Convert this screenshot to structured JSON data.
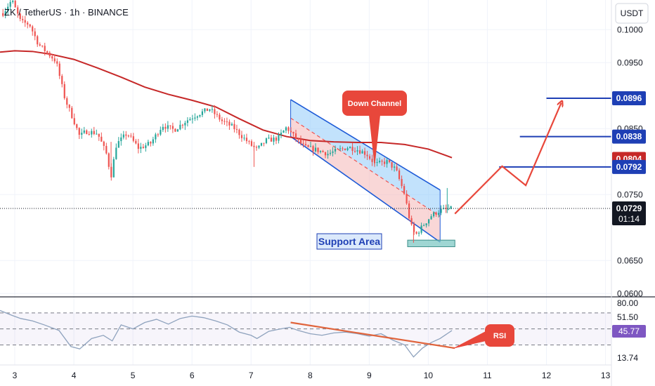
{
  "header": {
    "title": "ZK / TetherUS · 1h · BINANCE",
    "currency": "USDT"
  },
  "colors": {
    "up": "#26a69a",
    "down": "#ef5350",
    "ma": "#c62828",
    "channel_fill": "#90caf9",
    "channel_line": "#1e5bd7",
    "annotation": "#e8473b",
    "target_line": "#1e3fb5",
    "rsi_line": "#8ea2bd",
    "rsi_trend": "#e0643c"
  },
  "chart_data": [
    {
      "type": "candlestick",
      "symbol": "ZK / TetherUS",
      "timeframe": "1h",
      "exchange": "BINANCE",
      "y_unit": "USDT",
      "ylim": [
        0.0595,
        0.1045
      ],
      "xlim": [
        2.75,
        13.1
      ],
      "x_tick_labels": [
        "3",
        "4",
        "5",
        "6",
        "7",
        "8",
        "9",
        "10",
        "11",
        "12",
        "13"
      ],
      "y_tick_labels": [
        "0.1000",
        "0.0950",
        "0.0850",
        "0.0750",
        "0.0650",
        "0.0600"
      ],
      "price_path": [
        [
          2.8,
          0.1025
        ],
        [
          2.95,
          0.1045
        ],
        [
          3.1,
          0.1012
        ],
        [
          3.25,
          0.1008
        ],
        [
          3.4,
          0.0978
        ],
        [
          3.55,
          0.0965
        ],
        [
          3.7,
          0.0952
        ],
        [
          3.85,
          0.0895
        ],
        [
          4.0,
          0.0862
        ],
        [
          4.1,
          0.0838
        ],
        [
          4.2,
          0.0846
        ],
        [
          4.4,
          0.0843
        ],
        [
          4.55,
          0.0812
        ],
        [
          4.63,
          0.0778
        ],
        [
          4.72,
          0.0826
        ],
        [
          4.9,
          0.0843
        ],
        [
          5.1,
          0.082
        ],
        [
          5.3,
          0.0828
        ],
        [
          5.5,
          0.0855
        ],
        [
          5.7,
          0.0848
        ],
        [
          5.9,
          0.0862
        ],
        [
          6.1,
          0.0872
        ],
        [
          6.3,
          0.088
        ],
        [
          6.5,
          0.0862
        ],
        [
          6.7,
          0.0852
        ],
        [
          6.85,
          0.0838
        ],
        [
          7.0,
          0.0825
        ],
        [
          7.1,
          0.0818
        ],
        [
          7.25,
          0.0832
        ],
        [
          7.45,
          0.0835
        ],
        [
          7.6,
          0.0852
        ],
        [
          7.75,
          0.0836
        ],
        [
          7.9,
          0.0822
        ],
        [
          8.1,
          0.0818
        ],
        [
          8.3,
          0.0812
        ],
        [
          8.5,
          0.0818
        ],
        [
          8.65,
          0.0822
        ],
        [
          8.8,
          0.0818
        ],
        [
          8.95,
          0.0812
        ],
        [
          9.1,
          0.0796
        ],
        [
          9.3,
          0.08
        ],
        [
          9.45,
          0.0788
        ],
        [
          9.6,
          0.075
        ],
        [
          9.7,
          0.0705
        ],
        [
          9.78,
          0.0688
        ],
        [
          9.9,
          0.0702
        ],
        [
          10.05,
          0.0718
        ],
        [
          10.2,
          0.0726
        ],
        [
          10.35,
          0.0728
        ],
        [
          10.4,
          0.0729
        ]
      ],
      "moving_average": [
        [
          2.75,
          0.0966
        ],
        [
          3.0,
          0.0968
        ],
        [
          3.3,
          0.0967
        ],
        [
          3.6,
          0.0963
        ],
        [
          4.0,
          0.0955
        ],
        [
          4.4,
          0.0942
        ],
        [
          4.8,
          0.0928
        ],
        [
          5.2,
          0.0913
        ],
        [
          5.6,
          0.0902
        ],
        [
          6.0,
          0.0893
        ],
        [
          6.4,
          0.0883
        ],
        [
          6.8,
          0.0865
        ],
        [
          7.2,
          0.0848
        ],
        [
          7.6,
          0.0838
        ],
        [
          8.0,
          0.0832
        ],
        [
          8.4,
          0.083
        ],
        [
          8.8,
          0.0829
        ],
        [
          9.2,
          0.0829
        ],
        [
          9.6,
          0.0826
        ],
        [
          10.0,
          0.0819
        ],
        [
          10.4,
          0.0806
        ]
      ],
      "down_channel": {
        "upper": [
          [
            7.67,
            0.0894
          ],
          [
            10.2,
            0.0757
          ]
        ],
        "lower": [
          [
            7.67,
            0.0838
          ],
          [
            10.2,
            0.0678
          ]
        ],
        "midline": [
          [
            7.67,
            0.0866
          ],
          [
            10.2,
            0.0717
          ]
        ]
      },
      "projection_path": [
        [
          10.45,
          0.0721
        ],
        [
          11.25,
          0.0793
        ],
        [
          11.65,
          0.0764
        ],
        [
          12.25,
          0.0889
        ]
      ],
      "target_levels": [
        {
          "label": "0.0896",
          "value": 0.0896,
          "from_x": 12.0
        },
        {
          "label": "0.0838",
          "value": 0.0838,
          "from_x": 11.55
        },
        {
          "label": "0.0792",
          "value": 0.0792,
          "from_x": 11.2
        }
      ],
      "price_badges": [
        {
          "label": "0.0896",
          "value": 0.0896,
          "color": "#1e3fb5"
        },
        {
          "label": "0.0838",
          "value": 0.0838,
          "color": "#1e3fb5"
        },
        {
          "label": "0.0804",
          "value": 0.0804,
          "color": "#c62828"
        },
        {
          "label": "0.0792",
          "value": 0.0792,
          "color": "#1e3fb5"
        }
      ],
      "current_price": {
        "label": "0.0729",
        "value": 0.0729,
        "countdown": "01:14"
      },
      "support_area": {
        "x": [
          9.65,
          10.45
        ],
        "y": [
          0.0671,
          0.0681
        ]
      },
      "annotations": {
        "down_channel_label": "Down Channel",
        "support_label": "Support Area"
      }
    },
    {
      "type": "line",
      "name": "RSI",
      "ylim": [
        5,
        90
      ],
      "y_tick_labels": [
        "80.00",
        "51.50",
        "13.74"
      ],
      "levels": [
        70,
        50,
        30
      ],
      "current_value": {
        "label": "45.77",
        "value": 45.77
      },
      "label": "RSI",
      "values": [
        [
          2.75,
          73
        ],
        [
          2.95,
          67
        ],
        [
          3.1,
          63
        ],
        [
          3.3,
          60
        ],
        [
          3.5,
          55
        ],
        [
          3.75,
          48
        ],
        [
          3.95,
          28
        ],
        [
          4.1,
          25
        ],
        [
          4.3,
          38
        ],
        [
          4.5,
          42
        ],
        [
          4.65,
          35
        ],
        [
          4.8,
          55
        ],
        [
          5.0,
          50
        ],
        [
          5.2,
          58
        ],
        [
          5.4,
          62
        ],
        [
          5.6,
          56
        ],
        [
          5.8,
          63
        ],
        [
          6.0,
          66
        ],
        [
          6.2,
          64
        ],
        [
          6.4,
          60
        ],
        [
          6.6,
          55
        ],
        [
          6.8,
          46
        ],
        [
          7.0,
          42
        ],
        [
          7.1,
          38
        ],
        [
          7.3,
          47
        ],
        [
          7.5,
          50
        ],
        [
          7.65,
          52
        ],
        [
          7.8,
          48
        ],
        [
          8.0,
          44
        ],
        [
          8.2,
          42
        ],
        [
          8.4,
          45
        ],
        [
          8.6,
          46
        ],
        [
          8.8,
          44
        ],
        [
          9.0,
          41
        ],
        [
          9.2,
          44
        ],
        [
          9.4,
          36
        ],
        [
          9.6,
          30
        ],
        [
          9.75,
          15
        ],
        [
          9.9,
          26
        ],
        [
          10.05,
          33
        ],
        [
          10.2,
          38
        ],
        [
          10.4,
          48
        ]
      ],
      "trendline": [
        [
          7.67,
          58
        ],
        [
          10.45,
          26
        ]
      ]
    }
  ]
}
